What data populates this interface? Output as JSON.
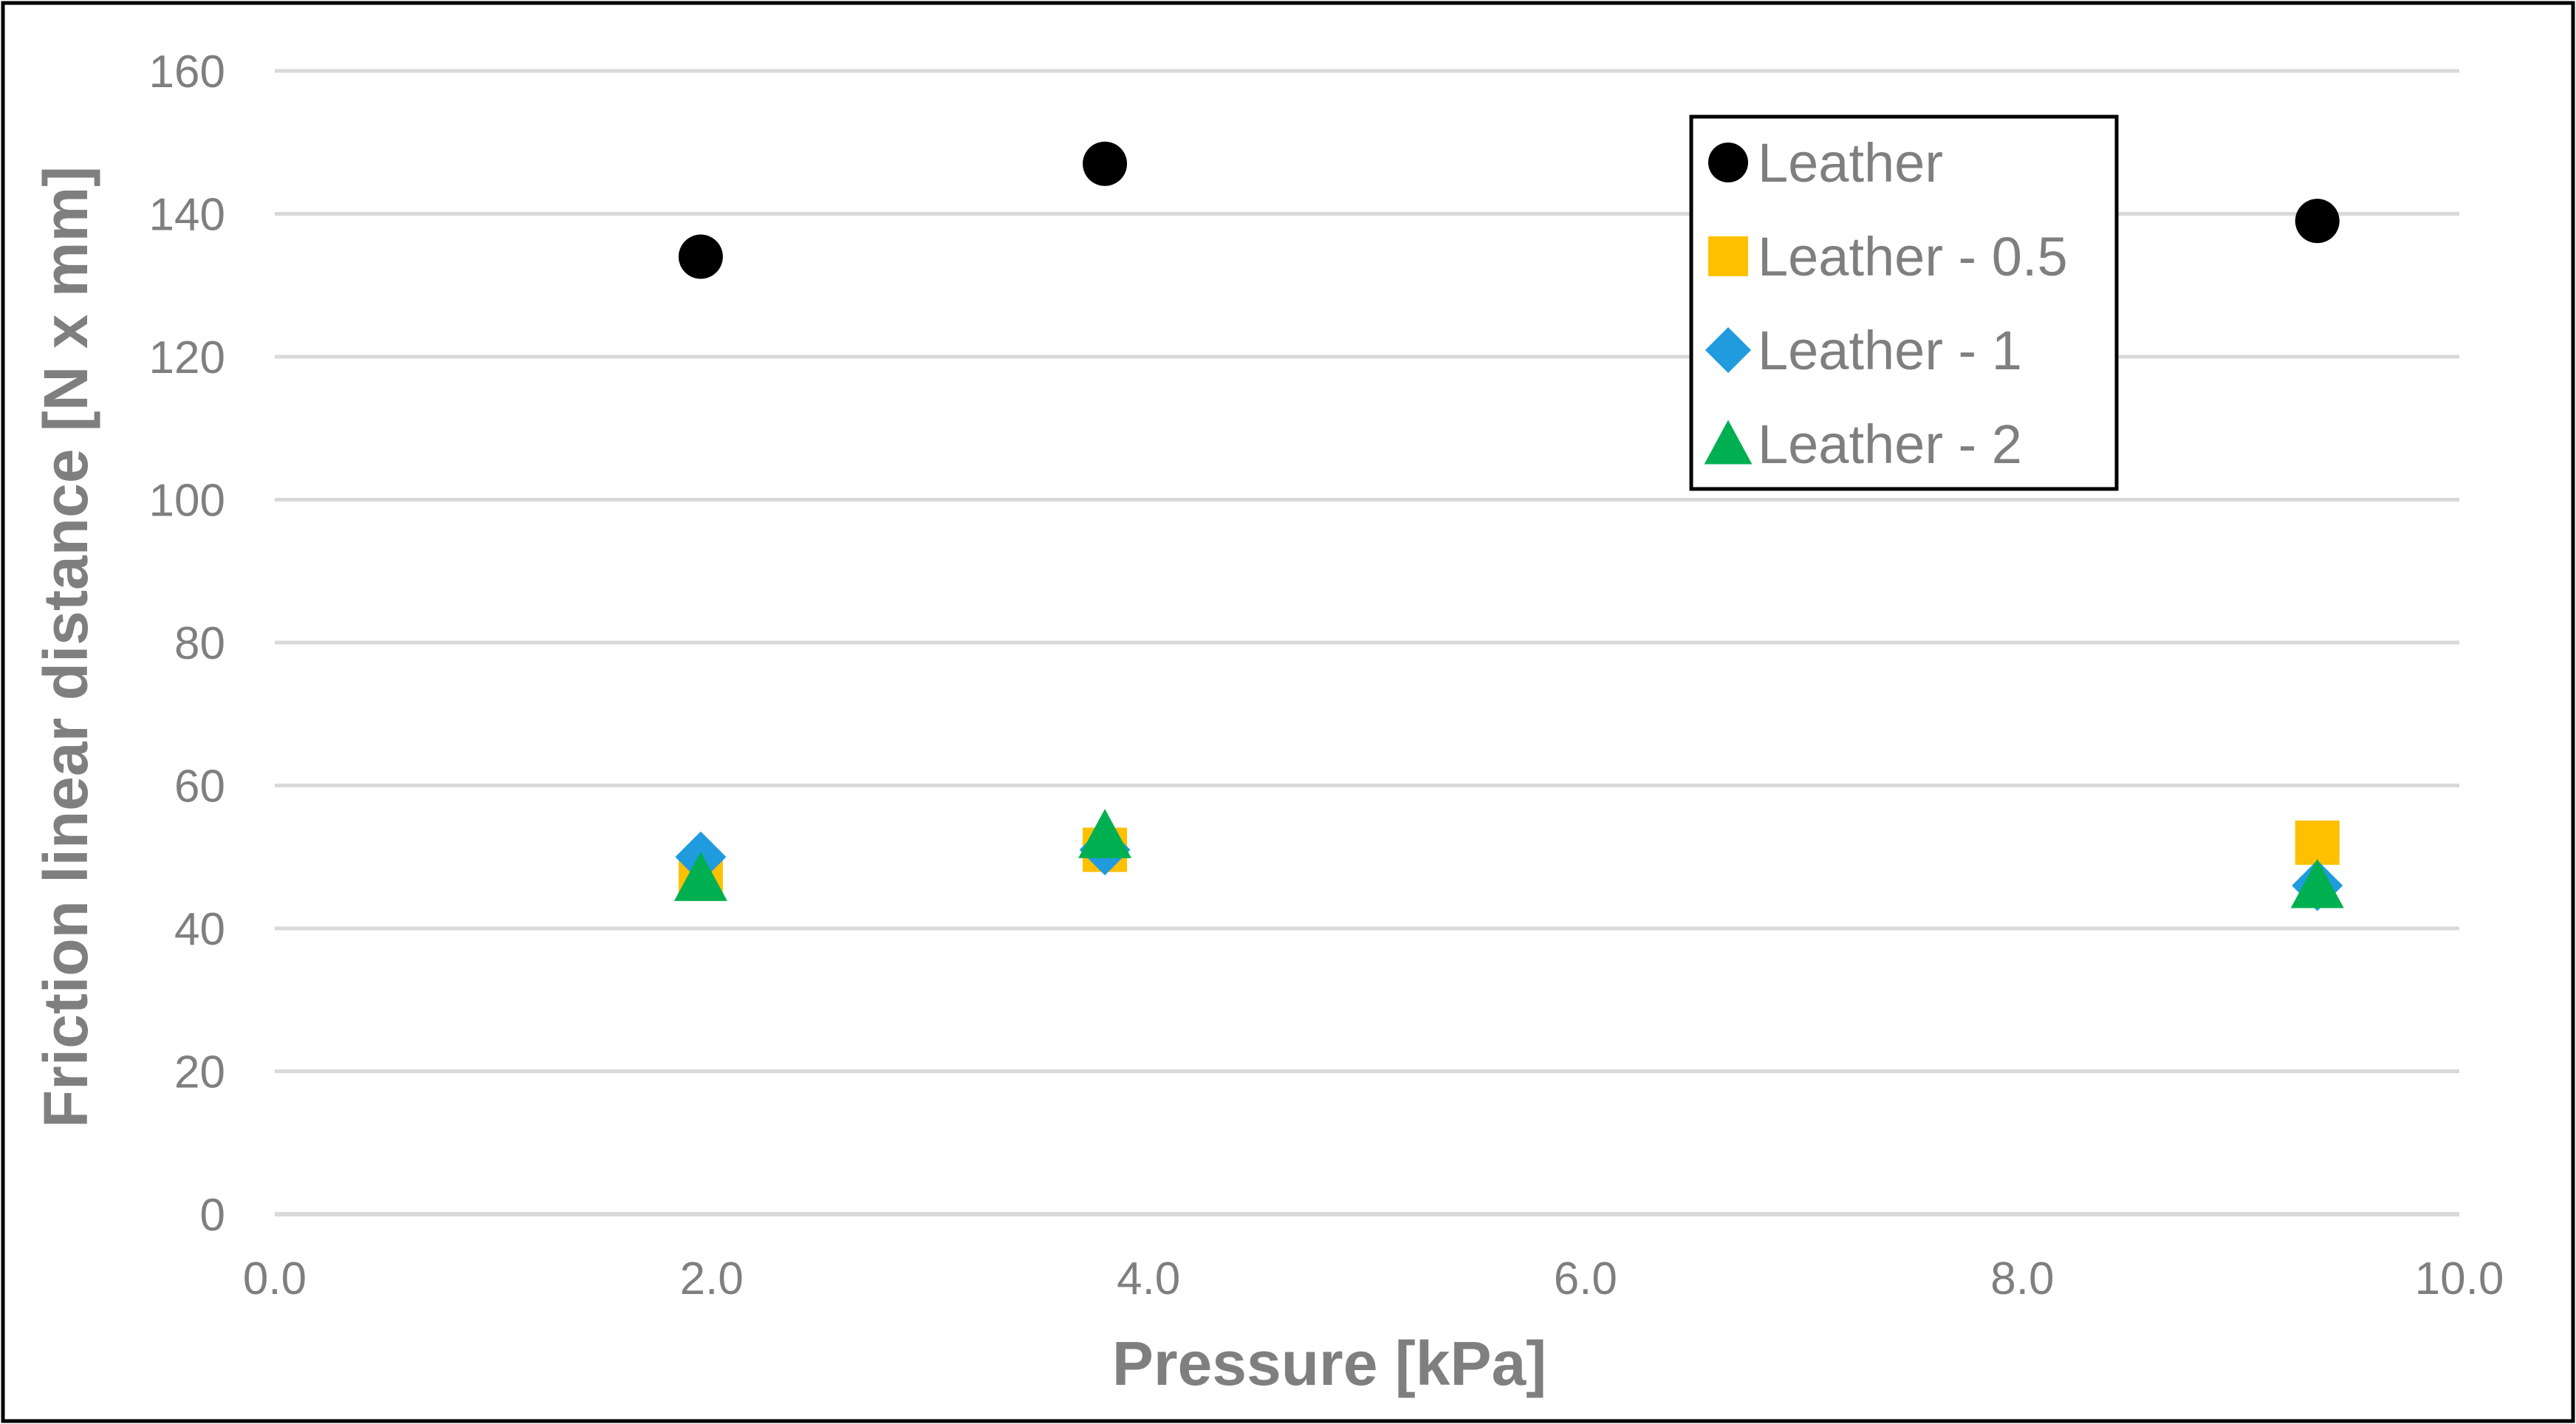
{
  "chart_data": {
    "type": "scatter",
    "title": "",
    "xlabel": "Pressure [kPa]",
    "ylabel": "Friction linear distance [N x mm]",
    "xlim": [
      0,
      10
    ],
    "ylim": [
      0,
      160
    ],
    "x_ticks": [
      "0.0",
      "2.0",
      "4.0",
      "6.0",
      "8.0",
      "10.0"
    ],
    "y_ticks": [
      "0",
      "20",
      "40",
      "60",
      "80",
      "100",
      "120",
      "140",
      "160"
    ],
    "grid": "horizontal",
    "legend_position": "top-right",
    "series": [
      {
        "name": "Leather",
        "marker": "circle",
        "color": "#000000",
        "x": [
          1.95,
          3.8,
          9.35
        ],
        "y": [
          134,
          147,
          139
        ]
      },
      {
        "name": "Leather - 0.5",
        "marker": "square",
        "color": "#FFC000",
        "x": [
          1.95,
          3.8,
          9.35
        ],
        "y": [
          47,
          51,
          52
        ]
      },
      {
        "name": "Leather - 1",
        "marker": "diamond",
        "color": "#1F9BDE",
        "x": [
          1.95,
          3.8,
          9.35
        ],
        "y": [
          50,
          51,
          46
        ]
      },
      {
        "name": "Leather - 2",
        "marker": "triangle",
        "color": "#00B050",
        "x": [
          1.95,
          3.8,
          9.35
        ],
        "y": [
          47,
          53,
          46
        ]
      }
    ]
  }
}
